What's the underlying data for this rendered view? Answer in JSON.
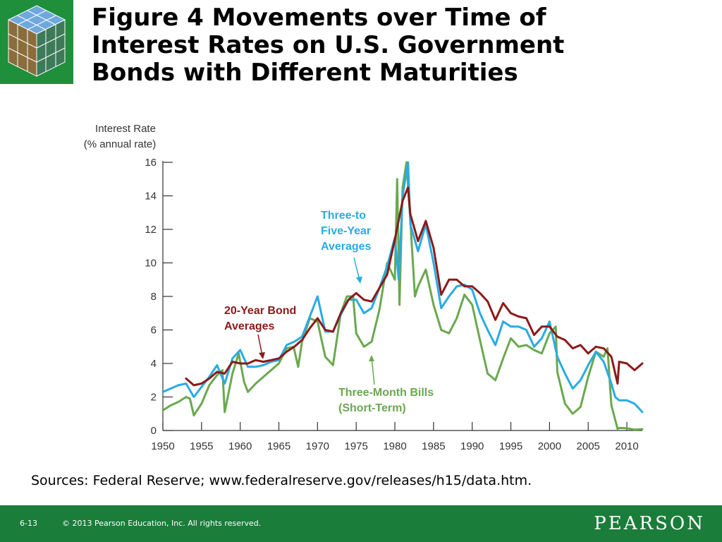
{
  "slide": {
    "title_lines": [
      "Figure 4  Movements over Time of",
      "Interest Rates on U.S. Government",
      "Bonds with Different Maturities"
    ],
    "sources": "Sources: Federal Reserve; www.federalreserve.gov/releases/h15/data.htm.",
    "slide_number": "6-13",
    "copyright": "© 2013 Pearson Education, Inc. All rights reserved.",
    "brand": "PEARSON",
    "colors": {
      "footer": "#1a7d3a",
      "logo_bg": "#1f8f3c"
    }
  },
  "chart_data": {
    "type": "line",
    "title": "",
    "ylabel_lines": [
      "Interest Rate",
      "(% annual rate)"
    ],
    "xlabel": "",
    "xlim": [
      1950,
      2012
    ],
    "ylim": [
      0,
      16
    ],
    "x_ticks": [
      1950,
      1955,
      1960,
      1965,
      1970,
      1975,
      1980,
      1985,
      1990,
      1995,
      2000,
      2005,
      2010
    ],
    "y_ticks": [
      0,
      2,
      4,
      6,
      8,
      10,
      12,
      14,
      16
    ],
    "grid": false,
    "legend": "inline-annotations",
    "series": [
      {
        "name": "Three-Month Bills (Short-Term)",
        "label_lines": [
          "Three-Month Bills",
          "(Short-Term)"
        ],
        "color": "#6aa84f",
        "x": [
          1950,
          1951,
          1952,
          1953,
          1953.5,
          1954,
          1955,
          1956,
          1957,
          1957.7,
          1958,
          1959,
          1959.8,
          1960.5,
          1961,
          1962,
          1963,
          1964,
          1965,
          1966,
          1966.9,
          1967.5,
          1968,
          1969,
          1970,
          1971,
          1972,
          1973,
          1973.8,
          1974.6,
          1975,
          1976,
          1977,
          1978,
          1979,
          1980,
          1980.3,
          1980.6,
          1981,
          1981.5,
          1982,
          1982.6,
          1983,
          1984,
          1985,
          1986,
          1987,
          1988,
          1989,
          1990,
          1991,
          1992,
          1993,
          1994,
          1995,
          1996,
          1997,
          1998,
          1999,
          2000,
          2000.8,
          2001,
          2002,
          2003,
          2004,
          2005,
          2006,
          2007,
          2007.5,
          2008,
          2008.8,
          2009,
          2010,
          2011,
          2012
        ],
        "values": [
          1.2,
          1.5,
          1.7,
          2.0,
          1.9,
          0.9,
          1.6,
          2.7,
          3.3,
          3.6,
          1.1,
          3.4,
          4.6,
          2.9,
          2.3,
          2.8,
          3.2,
          3.6,
          4.0,
          4.9,
          5.0,
          3.8,
          5.3,
          6.7,
          6.5,
          4.4,
          3.9,
          7.0,
          8.0,
          8.0,
          5.8,
          5.0,
          5.3,
          7.2,
          10.0,
          9.0,
          15.0,
          7.5,
          14.5,
          16.0,
          12.5,
          8.0,
          8.6,
          9.6,
          7.5,
          6.0,
          5.8,
          6.7,
          8.1,
          7.5,
          5.4,
          3.4,
          3.0,
          4.3,
          5.5,
          5.0,
          5.1,
          4.8,
          4.6,
          5.8,
          6.2,
          3.5,
          1.6,
          1.0,
          1.4,
          3.2,
          4.7,
          4.4,
          4.9,
          1.5,
          0.1,
          0.15,
          0.14,
          0.05,
          0.08
        ]
      },
      {
        "name": "Three-to Five-Year Averages",
        "label_lines": [
          "Three-to",
          "Five-Year",
          "Averages"
        ],
        "color": "#29abe2",
        "x": [
          1950,
          1951,
          1952,
          1953,
          1954,
          1955,
          1956,
          1957,
          1958,
          1959,
          1960,
          1961,
          1962,
          1963,
          1964,
          1965,
          1966,
          1967,
          1968,
          1969,
          1970,
          1971,
          1972,
          1973,
          1974,
          1975,
          1976,
          1977,
          1978,
          1979,
          1980,
          1980.5,
          1981,
          1981.7,
          1982,
          1983,
          1984,
          1985,
          1986,
          1987,
          1988,
          1989,
          1990,
          1991,
          1992,
          1993,
          1994,
          1995,
          1996,
          1997,
          1998,
          1999,
          2000,
          2001,
          2002,
          2003,
          2004,
          2005,
          2006,
          2007,
          2008,
          2008.5,
          2009,
          2010,
          2011,
          2012
        ],
        "values": [
          2.3,
          2.5,
          2.7,
          2.8,
          2.0,
          2.6,
          3.2,
          3.9,
          2.8,
          4.3,
          4.8,
          3.8,
          3.8,
          3.9,
          4.1,
          4.2,
          5.1,
          5.3,
          5.6,
          6.8,
          8.0,
          5.9,
          5.9,
          6.9,
          7.8,
          7.8,
          7.0,
          7.3,
          8.5,
          9.8,
          11.5,
          9.0,
          14.0,
          16.0,
          12.3,
          10.7,
          12.3,
          10.0,
          7.3,
          8.0,
          8.6,
          8.7,
          8.4,
          7.0,
          6.0,
          5.1,
          6.5,
          6.2,
          6.2,
          6.0,
          5.0,
          5.5,
          6.5,
          4.4,
          3.4,
          2.5,
          3.0,
          3.9,
          4.7,
          4.1,
          2.8,
          2.0,
          1.8,
          1.8,
          1.6,
          1.1
        ]
      },
      {
        "name": "20-Year Bond Averages",
        "label_lines": [
          "20-Year Bond",
          "Averages"
        ],
        "color": "#8b1a1a",
        "x": [
          1953,
          1954,
          1955,
          1956,
          1957,
          1958,
          1959,
          1960,
          1961,
          1962,
          1963,
          1964,
          1965,
          1966,
          1967,
          1968,
          1969,
          1970,
          1971,
          1972,
          1973,
          1974,
          1975,
          1976,
          1977,
          1978,
          1979,
          1980,
          1981,
          1981.7,
          1982,
          1983,
          1984,
          1985,
          1986,
          1987,
          1988,
          1989,
          1990,
          1991,
          1992,
          1993,
          1994,
          1995,
          1996,
          1997,
          1998,
          1999,
          2000,
          2001,
          2002,
          2003,
          2004,
          2005,
          2006,
          2007,
          2008,
          2008.8,
          2009,
          2010,
          2011,
          2012
        ],
        "values": [
          3.1,
          2.7,
          2.8,
          3.1,
          3.5,
          3.4,
          4.1,
          4.0,
          4.0,
          4.2,
          4.1,
          4.2,
          4.3,
          4.7,
          5.0,
          5.4,
          6.1,
          6.7,
          6.0,
          5.9,
          7.0,
          7.8,
          8.2,
          7.8,
          7.7,
          8.5,
          9.3,
          11.4,
          13.7,
          14.5,
          12.9,
          11.3,
          12.5,
          10.9,
          8.1,
          9.0,
          9.0,
          8.6,
          8.6,
          8.2,
          7.7,
          6.6,
          7.6,
          7.0,
          6.8,
          6.7,
          5.7,
          6.2,
          6.2,
          5.6,
          5.4,
          4.9,
          5.1,
          4.6,
          5.0,
          4.9,
          4.4,
          2.8,
          4.1,
          4.0,
          3.6,
          4.0
        ]
      }
    ]
  }
}
